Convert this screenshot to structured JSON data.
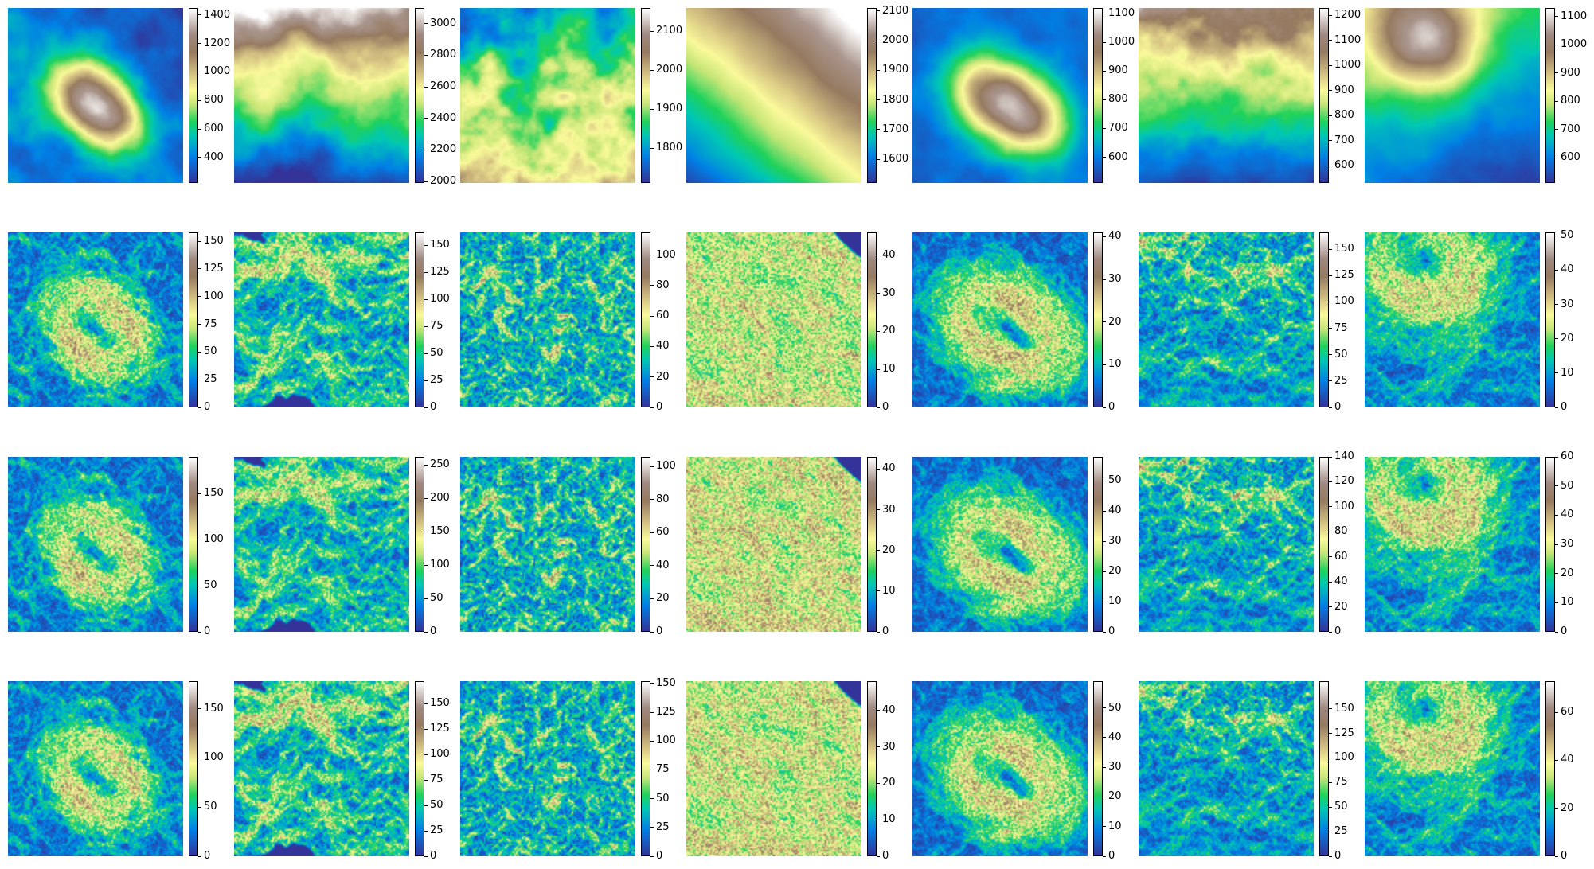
{
  "chart_data": {
    "type": "heatmap",
    "colormap": "terrain",
    "layout": {
      "rows": 4,
      "cols": 7
    },
    "row_kinds": [
      "elevation",
      "gradient",
      "gradient",
      "gradient"
    ],
    "panels": [
      {
        "row": 0,
        "col": 0,
        "kind": "elevation",
        "range": [
          220,
          1450
        ],
        "ticks": [
          400,
          600,
          800,
          1000,
          1200,
          1400
        ],
        "pattern": "central ridge (peak at center, NW–SE oriented)"
      },
      {
        "row": 0,
        "col": 1,
        "kind": "elevation",
        "range": [
          1990,
          3100
        ],
        "ticks": [
          2000,
          2200,
          2400,
          2600,
          2800,
          3000
        ],
        "pattern": "high ground at top, valleys draining to bottom"
      },
      {
        "row": 0,
        "col": 2,
        "kind": "elevation",
        "range": [
          1710,
          2160
        ],
        "ticks": [
          1800,
          1900,
          2000,
          2100
        ],
        "pattern": "dendritic valley network, lower at top"
      },
      {
        "row": 0,
        "col": 3,
        "kind": "elevation",
        "range": [
          1520,
          2110
        ],
        "ticks": [
          1600,
          1700,
          1800,
          1900,
          2000,
          2100
        ],
        "pattern": "smooth slope rising to top-right"
      },
      {
        "row": 0,
        "col": 4,
        "kind": "elevation",
        "range": [
          510,
          1120
        ],
        "ticks": [
          600,
          700,
          800,
          900,
          1000,
          1100
        ],
        "pattern": "elliptical hill at center"
      },
      {
        "row": 0,
        "col": 5,
        "kind": "elevation",
        "range": [
          530,
          1230
        ],
        "ticks": [
          600,
          700,
          800,
          900,
          1000,
          1100,
          1200
        ],
        "pattern": "rough highlands at top, plain at bottom"
      },
      {
        "row": 0,
        "col": 6,
        "kind": "elevation",
        "range": [
          510,
          1130
        ],
        "ticks": [
          600,
          700,
          800,
          900,
          1000,
          1100
        ],
        "pattern": "peak at upper center, slope toward bottom-right"
      },
      {
        "row": 1,
        "col": 0,
        "kind": "gradient",
        "range": [
          0,
          158
        ],
        "ticks": [
          0,
          25,
          50,
          75,
          100,
          125,
          150
        ]
      },
      {
        "row": 1,
        "col": 1,
        "kind": "gradient",
        "range": [
          0,
          162
        ],
        "ticks": [
          0,
          25,
          50,
          75,
          100,
          125,
          150
        ]
      },
      {
        "row": 1,
        "col": 2,
        "kind": "gradient",
        "range": [
          0,
          115
        ],
        "ticks": [
          0,
          20,
          40,
          60,
          80,
          100
        ]
      },
      {
        "row": 1,
        "col": 3,
        "kind": "gradient",
        "range": [
          0,
          46
        ],
        "ticks": [
          0,
          10,
          20,
          30,
          40
        ]
      },
      {
        "row": 1,
        "col": 4,
        "kind": "gradient",
        "range": [
          0,
          41
        ],
        "ticks": [
          0,
          10,
          20,
          30,
          40
        ]
      },
      {
        "row": 1,
        "col": 5,
        "kind": "gradient",
        "range": [
          0,
          166
        ],
        "ticks": [
          0,
          25,
          50,
          75,
          100,
          125,
          150
        ]
      },
      {
        "row": 1,
        "col": 6,
        "kind": "gradient",
        "range": [
          0,
          51
        ],
        "ticks": [
          0,
          10,
          20,
          30,
          40,
          50
        ]
      },
      {
        "row": 2,
        "col": 0,
        "kind": "gradient",
        "range": [
          0,
          190
        ],
        "ticks": [
          0,
          50,
          100,
          150
        ]
      },
      {
        "row": 2,
        "col": 1,
        "kind": "gradient",
        "range": [
          0,
          262
        ],
        "ticks": [
          0,
          50,
          100,
          150,
          200,
          250
        ]
      },
      {
        "row": 2,
        "col": 2,
        "kind": "gradient",
        "range": [
          0,
          106
        ],
        "ticks": [
          0,
          20,
          40,
          60,
          80,
          100
        ]
      },
      {
        "row": 2,
        "col": 3,
        "kind": "gradient",
        "range": [
          0,
          43
        ],
        "ticks": [
          0,
          10,
          20,
          30,
          40
        ]
      },
      {
        "row": 2,
        "col": 4,
        "kind": "gradient",
        "range": [
          0,
          58
        ],
        "ticks": [
          0,
          10,
          20,
          30,
          40,
          50
        ]
      },
      {
        "row": 2,
        "col": 5,
        "kind": "gradient",
        "range": [
          0,
          140
        ],
        "ticks": [
          0,
          20,
          40,
          60,
          80,
          100,
          120,
          140
        ]
      },
      {
        "row": 2,
        "col": 6,
        "kind": "gradient",
        "range": [
          0,
          60
        ],
        "ticks": [
          0,
          10,
          20,
          30,
          40,
          50,
          60
        ]
      },
      {
        "row": 3,
        "col": 0,
        "kind": "gradient",
        "range": [
          0,
          178
        ],
        "ticks": [
          0,
          50,
          100,
          150
        ]
      },
      {
        "row": 3,
        "col": 1,
        "kind": "gradient",
        "range": [
          0,
          172
        ],
        "ticks": [
          0,
          25,
          50,
          75,
          100,
          125,
          150
        ]
      },
      {
        "row": 3,
        "col": 2,
        "kind": "gradient",
        "range": [
          0,
          152
        ],
        "ticks": [
          0,
          25,
          50,
          75,
          100,
          125,
          150
        ]
      },
      {
        "row": 3,
        "col": 3,
        "kind": "gradient",
        "range": [
          0,
          48
        ],
        "ticks": [
          0,
          10,
          20,
          30,
          40
        ]
      },
      {
        "row": 3,
        "col": 4,
        "kind": "gradient",
        "range": [
          0,
          59
        ],
        "ticks": [
          0,
          10,
          20,
          30,
          40,
          50
        ]
      },
      {
        "row": 3,
        "col": 5,
        "kind": "gradient",
        "range": [
          0,
          178
        ],
        "ticks": [
          0,
          25,
          50,
          75,
          100,
          125,
          150
        ]
      },
      {
        "row": 3,
        "col": 6,
        "kind": "gradient",
        "range": [
          0,
          73
        ],
        "ticks": [
          0,
          20,
          40,
          60
        ]
      }
    ]
  }
}
